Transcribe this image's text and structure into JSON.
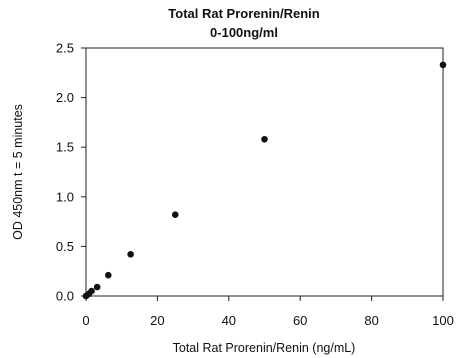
{
  "chart_data": {
    "type": "scatter",
    "title": "Total Rat Prorenin/Renin",
    "subtitle": "0-100ng/ml",
    "xlabel": "Total Rat Prorenin/Renin (ng/mL)",
    "ylabel": "OD 450nm t = 5 minutes",
    "xlim": [
      0,
      100
    ],
    "ylim": [
      0,
      2.5
    ],
    "xticks": [
      "0",
      "20",
      "40",
      "60",
      "80",
      "100"
    ],
    "yticks": [
      "0.0",
      "0.5",
      "1.0",
      "1.5",
      "2.0",
      "2.5"
    ],
    "grid": false,
    "legend": "none",
    "series": [
      {
        "x": [
          0,
          0.78,
          1.56,
          3.13,
          6.25,
          12.5,
          25,
          50,
          100
        ],
        "y": [
          0.0,
          0.02,
          0.05,
          0.09,
          0.21,
          0.42,
          0.82,
          1.58,
          2.33
        ]
      }
    ],
    "marker_color": "#111111"
  }
}
